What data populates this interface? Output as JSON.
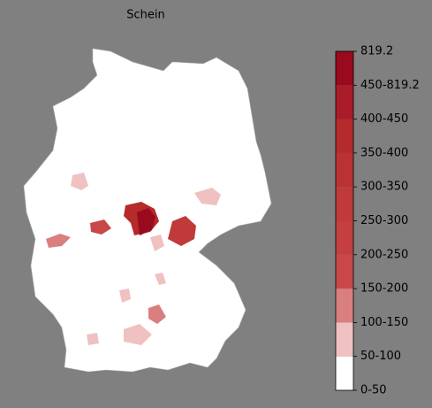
{
  "title": "Schein",
  "colorbar": {
    "labels": [
      "0-50",
      "50-100",
      "100-150",
      "150-200",
      "200-250",
      "250-300",
      "300-350",
      "350-400",
      "400-450",
      "450-819.2",
      "819.2"
    ],
    "colors": [
      "#ffffff",
      "#efc1c1",
      "#da7f7f",
      "#c84848",
      "#c44040",
      "#c03a3a",
      "#bb3232",
      "#b52a2a",
      "#aa1c28",
      "#9a0a1e"
    ]
  }
}
